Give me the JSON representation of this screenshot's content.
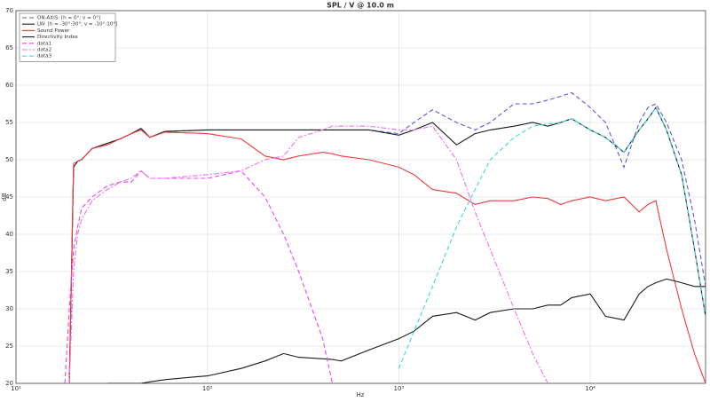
{
  "chart_data": {
    "type": "line",
    "title": "SPL / V @ 10.0 m",
    "xlabel": "Hz",
    "ylabel": "dB",
    "xscale": "log",
    "grid": true,
    "legend": "upper left",
    "xlim": [
      10,
      40000
    ],
    "ylim": [
      20,
      70
    ],
    "xticks": [
      {
        "value": 10,
        "label": "10¹"
      },
      {
        "value": 100,
        "label": "10²"
      },
      {
        "value": 1000,
        "label": "10³"
      },
      {
        "value": 10000,
        "label": "10⁴"
      }
    ],
    "yticks": [
      20,
      25,
      30,
      35,
      40,
      45,
      50,
      55,
      60,
      65,
      70
    ],
    "x": [
      18,
      19,
      20,
      21,
      22,
      25,
      30,
      35,
      40,
      45,
      50,
      60,
      80,
      100,
      150,
      200,
      250,
      300,
      400,
      450,
      500,
      700,
      1000,
      1200,
      1500,
      2000,
      2500,
      3000,
      4000,
      5000,
      6000,
      7000,
      8000,
      10000,
      12000,
      15000,
      18000,
      20000,
      22000,
      25000,
      30000,
      35000,
      40000
    ],
    "series": [
      {
        "name": "ON-AXIS: [h = 0°; v = 0°]",
        "color": "#5a5ad8",
        "dash": "5,3",
        "values": [
          null,
          20,
          49,
          49.8,
          50,
          51.5,
          52.2,
          52.8,
          53.5,
          54.2,
          53,
          53.8,
          53.9,
          54,
          54,
          54,
          54,
          54,
          54,
          54,
          54,
          54,
          53.5,
          55,
          56.7,
          55,
          54,
          55,
          57.5,
          57.5,
          58,
          58.5,
          59,
          57,
          55,
          49,
          55,
          57,
          57.5,
          55,
          50,
          42,
          33
        ]
      },
      {
        "name": "LW: [h = -30°:30°; v = -10°:10°]",
        "color": "#1a1a1a",
        "dash": "none",
        "values": [
          null,
          20,
          49,
          49.8,
          50,
          51.5,
          52.2,
          52.8,
          53.5,
          54.2,
          53,
          53.8,
          53.9,
          54,
          54,
          54,
          54,
          54,
          54,
          54,
          54,
          54,
          53.3,
          54,
          55,
          52,
          53.5,
          54,
          54.5,
          55,
          54.5,
          55,
          55.5,
          54,
          53,
          51,
          54,
          55.5,
          57,
          54,
          48,
          38,
          29
        ]
      },
      {
        "name": "Sound Power",
        "color": "#f03a3a",
        "dash": "none",
        "values": [
          null,
          20,
          49.5,
          49.8,
          50,
          51.5,
          52,
          52.8,
          53.5,
          54,
          53,
          53.7,
          53.6,
          53.5,
          52.8,
          50.5,
          50,
          50.5,
          51,
          50.8,
          50.5,
          50,
          49,
          48,
          46,
          45.5,
          44,
          44.5,
          44.5,
          45,
          44.8,
          44,
          44.5,
          45,
          44.5,
          45,
          43,
          44,
          44.5,
          38,
          30,
          24,
          20
        ]
      },
      {
        "name": "Directivity Index",
        "color": "#1a1a1a",
        "dash": "none",
        "values": [
          null,
          null,
          null,
          null,
          null,
          null,
          20,
          20,
          20,
          20,
          20.2,
          20.5,
          20.8,
          21,
          22,
          23,
          24,
          23.5,
          23.3,
          23.2,
          23,
          24.5,
          26,
          27,
          29,
          29.5,
          28.5,
          29.5,
          30,
          30,
          30.5,
          30.5,
          31.5,
          32,
          29,
          28.5,
          32,
          33,
          33.5,
          34,
          33.5,
          33,
          33
        ]
      },
      {
        "name": "data1",
        "color": "#ee44ee",
        "dash": "5,3",
        "values": [
          20,
          30,
          38,
          41,
          43.5,
          45,
          46.5,
          47,
          47,
          48.5,
          47.5,
          47.5,
          47.5,
          47.5,
          48.5,
          45,
          40,
          35,
          26,
          20,
          null,
          null,
          null,
          null,
          null,
          null,
          null,
          null,
          null,
          null,
          null,
          null,
          null,
          null,
          null,
          null,
          null,
          null,
          null,
          null,
          null,
          null,
          null
        ]
      },
      {
        "name": "data2",
        "color": "#f070f0",
        "dash": "6,2,2,2",
        "values": [
          null,
          20,
          35,
          40,
          42,
          44.5,
          46,
          47,
          47.5,
          48.5,
          47.5,
          47.5,
          47.8,
          48,
          48.5,
          50,
          50.5,
          53,
          54,
          54.5,
          54.5,
          54.5,
          54,
          54,
          54.5,
          50,
          43,
          38,
          30,
          24,
          20,
          null,
          null,
          null,
          null,
          null,
          null,
          null,
          null,
          null,
          null,
          null,
          null
        ]
      },
      {
        "name": "data3",
        "color": "#3ad8d8",
        "dash": "5,3",
        "values": [
          null,
          null,
          null,
          null,
          null,
          null,
          null,
          null,
          null,
          null,
          null,
          null,
          null,
          null,
          null,
          null,
          null,
          null,
          null,
          null,
          null,
          null,
          22,
          27,
          33,
          41,
          46,
          50,
          53,
          54.5,
          54.8,
          55,
          55.5,
          54,
          53,
          51,
          54,
          55.5,
          57,
          54,
          48,
          38,
          29
        ]
      }
    ]
  }
}
